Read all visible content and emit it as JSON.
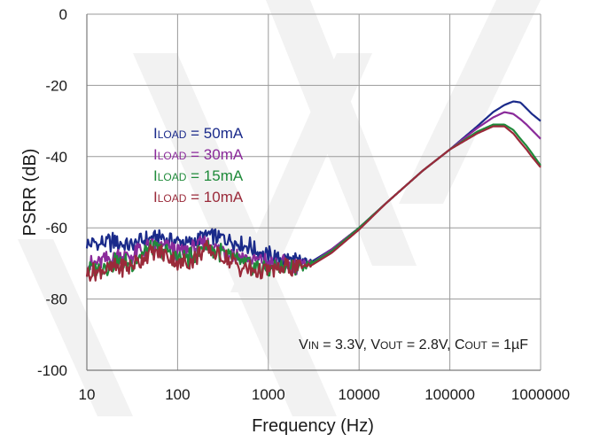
{
  "chart_data": {
    "type": "line",
    "x_scale": "log",
    "xlabel": "Frequency (Hz)",
    "ylabel": "PSRR (dB)",
    "xlim": [
      10,
      1000000
    ],
    "ylim": [
      -100,
      0
    ],
    "x_ticks": [
      "10",
      "100",
      "1000",
      "10000",
      "100000",
      "1000000"
    ],
    "y_ticks": [
      "0",
      "-20",
      "-40",
      "-60",
      "-80",
      "-100"
    ],
    "x_tick_values": [
      10,
      100,
      1000,
      10000,
      100000,
      1000000
    ],
    "y_tick_values": [
      0,
      -20,
      -40,
      -60,
      -80,
      -100
    ],
    "grid": true,
    "legend_position": "left-middle",
    "annotation": {
      "v_in": "V",
      "v_in_sub": "IN",
      "v_in_val": " = 3.3V, ",
      "v_out": "V",
      "v_out_sub": "OUT",
      "v_out_val": " = 2.8V, ",
      "c_out": "C",
      "c_out_sub": "OUT",
      "c_out_val": " = 1µF"
    },
    "series": [
      {
        "name": "ILOAD = 50mA",
        "label_main": "I",
        "label_sub": "LOAD",
        "label_val": " = 50mA",
        "color": "#1a2a8a",
        "points": [
          [
            10,
            -65
          ],
          [
            20,
            -64
          ],
          [
            30,
            -65
          ],
          [
            50,
            -63
          ],
          [
            70,
            -63
          ],
          [
            100,
            -64
          ],
          [
            150,
            -64
          ],
          [
            200,
            -62
          ],
          [
            300,
            -63
          ],
          [
            500,
            -64
          ],
          [
            700,
            -66
          ],
          [
            1000,
            -68
          ],
          [
            1500,
            -69
          ],
          [
            2000,
            -69.5
          ],
          [
            3000,
            -69.5
          ],
          [
            5000,
            -66
          ],
          [
            10000,
            -60
          ],
          [
            20000,
            -53
          ],
          [
            50000,
            -44
          ],
          [
            100000,
            -38
          ],
          [
            200000,
            -31.5
          ],
          [
            300000,
            -27.5
          ],
          [
            400000,
            -25.5
          ],
          [
            500000,
            -24.5
          ],
          [
            600000,
            -24.8
          ],
          [
            700000,
            -26.5
          ],
          [
            800000,
            -28
          ],
          [
            1000000,
            -30
          ]
        ]
      },
      {
        "name": "ILOAD = 30mA",
        "label_main": "I",
        "label_sub": "LOAD",
        "label_val": " = 30mA",
        "color": "#8a2a9a",
        "points": [
          [
            10,
            -71
          ],
          [
            20,
            -68
          ],
          [
            30,
            -68
          ],
          [
            50,
            -65
          ],
          [
            70,
            -65
          ],
          [
            100,
            -67
          ],
          [
            150,
            -66
          ],
          [
            200,
            -64
          ],
          [
            300,
            -66
          ],
          [
            500,
            -68
          ],
          [
            700,
            -69
          ],
          [
            1000,
            -70
          ],
          [
            1500,
            -70.5
          ],
          [
            2000,
            -70.5
          ],
          [
            3000,
            -70
          ],
          [
            5000,
            -66
          ],
          [
            10000,
            -60
          ],
          [
            20000,
            -53
          ],
          [
            50000,
            -44
          ],
          [
            100000,
            -38
          ],
          [
            200000,
            -32
          ],
          [
            300000,
            -29
          ],
          [
            400000,
            -27.5
          ],
          [
            500000,
            -28
          ],
          [
            600000,
            -29.5
          ],
          [
            700000,
            -31
          ],
          [
            800000,
            -32.5
          ],
          [
            1000000,
            -35
          ]
        ]
      },
      {
        "name": "ILOAD = 15mA",
        "label_main": "I",
        "label_sub": "LOAD",
        "label_val": " = 15mA",
        "color": "#1f8a3a",
        "points": [
          [
            10,
            -72
          ],
          [
            20,
            -70
          ],
          [
            30,
            -70
          ],
          [
            50,
            -66
          ],
          [
            70,
            -66
          ],
          [
            100,
            -69
          ],
          [
            150,
            -68
          ],
          [
            200,
            -65
          ],
          [
            300,
            -67
          ],
          [
            500,
            -70
          ],
          [
            700,
            -71
          ],
          [
            1000,
            -71.5
          ],
          [
            1500,
            -71
          ],
          [
            2000,
            -71
          ],
          [
            3000,
            -70
          ],
          [
            5000,
            -66.5
          ],
          [
            10000,
            -60
          ],
          [
            20000,
            -53
          ],
          [
            50000,
            -44
          ],
          [
            100000,
            -38
          ],
          [
            200000,
            -33
          ],
          [
            300000,
            -31
          ],
          [
            400000,
            -31
          ],
          [
            500000,
            -32.5
          ],
          [
            600000,
            -35
          ],
          [
            700000,
            -37
          ],
          [
            800000,
            -39
          ],
          [
            1000000,
            -42.5
          ]
        ]
      },
      {
        "name": "ILOAD = 10mA",
        "label_main": "I",
        "label_sub": "LOAD",
        "label_val": " = 10mA",
        "color": "#9a2a3a",
        "points": [
          [
            10,
            -73
          ],
          [
            20,
            -71
          ],
          [
            30,
            -71
          ],
          [
            50,
            -67
          ],
          [
            70,
            -67
          ],
          [
            100,
            -70
          ],
          [
            150,
            -69
          ],
          [
            200,
            -66
          ],
          [
            300,
            -68
          ],
          [
            500,
            -71
          ],
          [
            700,
            -72
          ],
          [
            1000,
            -72
          ],
          [
            1500,
            -71.5
          ],
          [
            2000,
            -71
          ],
          [
            3000,
            -70.5
          ],
          [
            5000,
            -67
          ],
          [
            10000,
            -60.5
          ],
          [
            20000,
            -53
          ],
          [
            50000,
            -44
          ],
          [
            100000,
            -38
          ],
          [
            200000,
            -33.5
          ],
          [
            300000,
            -31.5
          ],
          [
            400000,
            -31.5
          ],
          [
            500000,
            -33.5
          ],
          [
            600000,
            -36
          ],
          [
            700000,
            -38
          ],
          [
            800000,
            -40
          ],
          [
            1000000,
            -43
          ]
        ]
      }
    ]
  }
}
